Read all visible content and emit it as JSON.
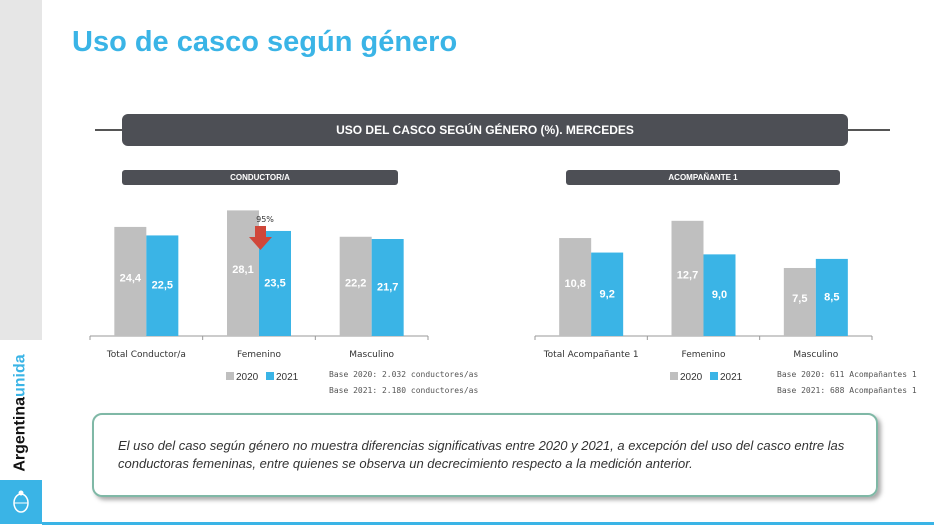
{
  "title": "Uso de casco según género",
  "banner": "USO DEL CASCO SEGÚN GÉNERO (%). MERCEDES",
  "brand": {
    "word1": "Argentina",
    "word2": "unida"
  },
  "colors": {
    "y2020": "#bfbfbf",
    "y2021": "#3ab4e6",
    "arrow": "#d0473a"
  },
  "chart_data": [
    {
      "type": "bar",
      "title": "CONDUCTOR/A",
      "categories": [
        "Total Conductor/a",
        "Femenino",
        "Masculino"
      ],
      "series": [
        {
          "name": "2020",
          "values": [
            24.4,
            28.1,
            22.2
          ]
        },
        {
          "name": "2021",
          "values": [
            22.5,
            23.5,
            21.7
          ]
        }
      ],
      "labels2020": [
        "24,4",
        "28,1",
        "22,2"
      ],
      "labels2021": [
        "22,5",
        "23,5",
        "21,7"
      ],
      "annotation": "95%",
      "base": [
        "Base 2020: 2.032 conductores/as",
        "Base 2021: 2.180 conductores/as"
      ]
    },
    {
      "type": "bar",
      "title": "ACOMPAÑANTE 1",
      "categories": [
        "Total Acompañante 1",
        "Femenino",
        "Masculino"
      ],
      "series": [
        {
          "name": "2020",
          "values": [
            10.8,
            12.7,
            7.5
          ]
        },
        {
          "name": "2021",
          "values": [
            9.2,
            9.0,
            8.5
          ]
        }
      ],
      "labels2020": [
        "10,8",
        "12,7",
        "7,5"
      ],
      "labels2021": [
        "9,2",
        "9,0",
        "8,5"
      ],
      "base": [
        "Base 2020: 611 Acompañantes 1",
        "Base 2021: 688 Acompañantes 1"
      ]
    }
  ],
  "note": "El uso del caso según género no muestra diferencias significativas entre 2020 y 2021, a excepción del uso del casco entre las conductoras femeninas, entre quienes se observa un decrecimiento respecto a la medición anterior."
}
